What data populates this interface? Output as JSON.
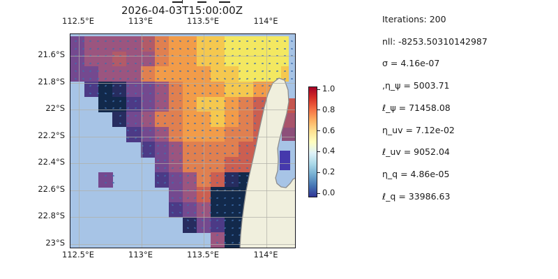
{
  "figure": {
    "background": "#ffffff",
    "title": "2026-04-03T15:00:00Z"
  },
  "stats_panel": {
    "lines": [
      "Iterations: 200",
      "nll: -8253.50310142987",
      "σ = 4.16e-07",
      ",η_ψ = 5003.71",
      "ℓ_ψ = 71458.08",
      "η_uv = 7.12e-02",
      "ℓ_uv = 9052.04",
      "η_q = 4.86e-05",
      "ℓ_q = 33986.63"
    ]
  },
  "chart_data": {
    "type": "heatmap",
    "title": "2026-04-03T15:00:00Z",
    "x_ticks": [
      "112.5°E",
      "113°E",
      "113.5°E",
      "114°E"
    ],
    "y_ticks": [
      "21.6°S",
      "21.8°S",
      "22°S",
      "22.2°S",
      "22.4°S",
      "22.6°S",
      "22.8°S",
      "23°S"
    ],
    "lon_range_deg_e": [
      112.43,
      114.22
    ],
    "lat_range_deg_s": [
      21.44,
      23.02
    ],
    "grid_on": true,
    "overlay": "quiver-arrows",
    "colorbar": {
      "colormap": "RdYlBu_r",
      "range": [
        0.0,
        1.0
      ],
      "tick_labels": [
        "1.0",
        "0.8",
        "0.6",
        "0.4",
        "0.2",
        "0.0"
      ],
      "tick_values": [
        1.0,
        0.8,
        0.6,
        0.4,
        0.2,
        0.0
      ],
      "stops_bottom_to_top": [
        "#313695",
        "#4575b4",
        "#74add1",
        "#abd9e9",
        "#e0f3f8",
        "#ffffbf",
        "#fee090",
        "#fdae61",
        "#f46d43",
        "#d73027",
        "#a50026"
      ]
    },
    "map_colors": {
      "ocean": "#a7c4e6",
      "land": "#f0efdd",
      "coastline": "#8c8c8c",
      "gridline": "#b0aea6",
      "quiver": "#3e6eac"
    },
    "field_grid": {
      "note": "coarse 16x14 estimate of plotted field colors; '.' = no data (ocean/land)",
      "ncols": 16,
      "nrows": 14,
      "palette": {
        "Y": "#f3e861",
        "y": "#f5c84f",
        "O": "#f29c49",
        "o": "#e08050",
        "R": "#cb5f51",
        "r": "#b25b68",
        "M": "#9b557f",
        "P": "#74498f",
        "p": "#4c3a86",
        "N": "#272c5f",
        "D": "#12294b",
        "I": "#4539ac"
      },
      "cells": [
        "PMMMMroOOyyYYYYY",
        "PMMrMMoOOyyYYYYY",
        "PPMMMoOOOOyyYYYy",
        ".pDNPPMoOOOyyOO.",
        "..DDpPMoOyyOoR..",
        "...NPMooOOyOoR..",
        "....pPMoOOOooR..",
        ".....pPMooooRR..",
        "......PMoooRR...",
        "..P...pPMoRND...",
        ".......PMRDDD...",
        ".......pPMDDD...",
        "........NPpDD...",
        "..........MDD..."
      ],
      "gulf_patches": [
        {
          "x": 303,
          "y": 92,
          "w": 19,
          "h": 21,
          "color": "#c5564f"
        },
        {
          "x": 303,
          "y": 113,
          "w": 19,
          "h": 21,
          "color": "#a9546b"
        },
        {
          "x": 303,
          "y": 134,
          "w": 19,
          "h": 19,
          "color": "#8d4f7a"
        },
        {
          "x": 300,
          "y": 167,
          "w": 15,
          "h": 28,
          "color": "#4539ac"
        }
      ]
    }
  }
}
